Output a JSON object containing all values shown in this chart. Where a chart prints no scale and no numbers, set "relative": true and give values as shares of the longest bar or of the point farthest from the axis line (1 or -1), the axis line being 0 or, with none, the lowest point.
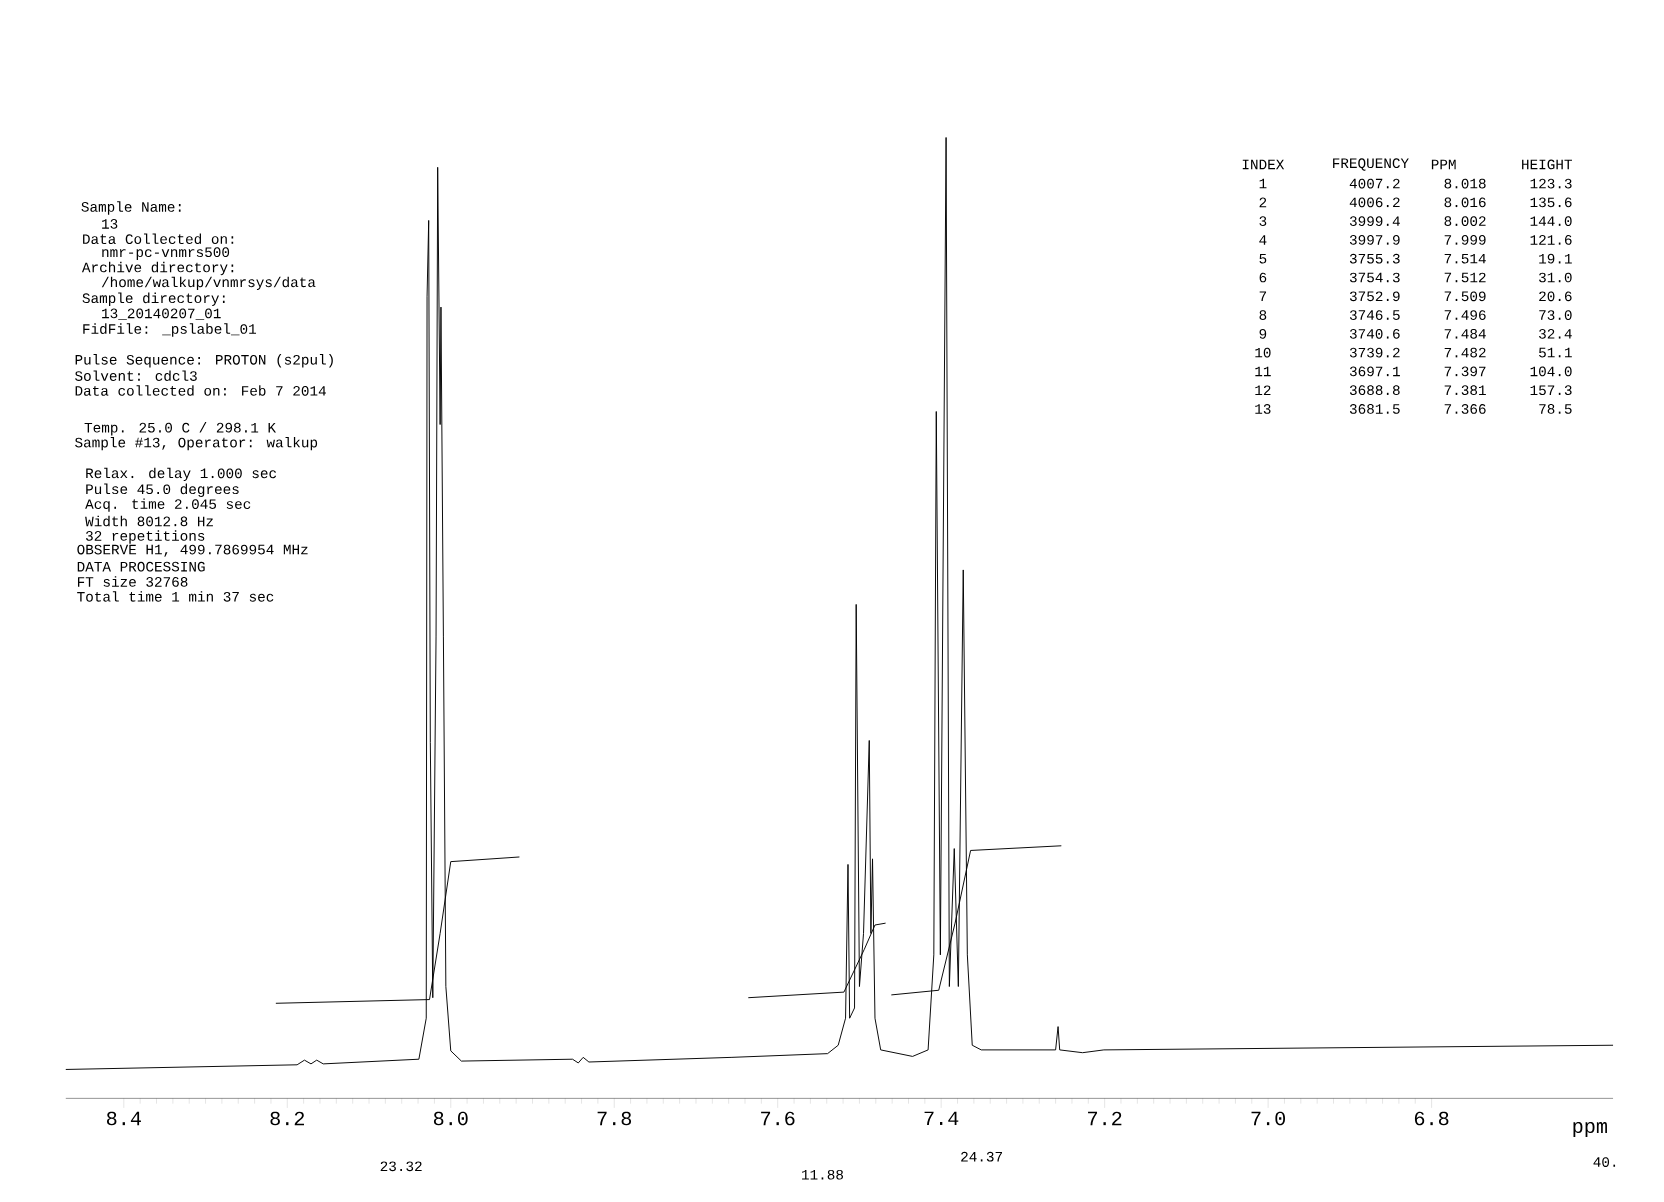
{
  "chart_data": {
    "type": "line",
    "relative": true,
    "xlabel": "ppm",
    "xlim": [
      8.471,
      6.578
    ],
    "xticks": [
      8.4,
      8.2,
      {
        "value": 8.0,
        "label": "8.0"
      },
      7.8,
      7.6,
      7.4,
      7.2,
      {
        "value": 7.0,
        "label": "7.0"
      },
      6.8
    ],
    "series": [
      {
        "color": "#000000",
        "x": [
          8.471,
          8.188,
          8.179,
          8.171,
          8.164,
          8.156,
          8.039,
          8.03,
          8.029,
          8.027,
          8.025,
          8.022,
          8.018,
          8.016,
          8.013,
          8.012,
          8.009,
          8.006,
          8.0,
          7.987,
          7.851,
          7.844,
          7.838,
          7.831,
          7.656,
          7.539,
          7.526,
          7.517,
          7.514,
          7.512,
          7.506,
          7.504,
          7.5,
          7.495,
          7.488,
          7.486,
          7.484,
          7.481,
          7.474,
          7.435,
          7.416,
          7.409,
          7.406,
          7.401,
          7.394,
          7.39,
          7.384,
          7.379,
          7.373,
          7.368,
          7.362,
          7.351,
          7.26,
          7.257,
          7.255,
          7.227,
          7.201,
          6.578
        ],
        "values": [
          0,
          0.005,
          0.01,
          0.006,
          0.01,
          0.006,
          0.011,
          0.055,
          0.829,
          0.911,
          0.351,
          0.077,
          0.465,
          0.968,
          0.692,
          0.818,
          0.465,
          0.089,
          0.02,
          0.009,
          0.011,
          0.007,
          0.013,
          0.008,
          0.013,
          0.017,
          0.026,
          0.055,
          0.22,
          0.055,
          0.066,
          0.499,
          0.089,
          0.146,
          0.353,
          0.146,
          0.226,
          0.055,
          0.021,
          0.014,
          0.021,
          0.123,
          0.706,
          0.123,
          1.0,
          0.089,
          0.237,
          0.089,
          0.536,
          0.123,
          0.026,
          0.021,
          0.021,
          0.046,
          0.021,
          0.018,
          0.021,
          0.026
        ]
      },
      {
        "color": "#000000",
        "x": [
          8.214,
          8.026,
          8.013,
          8.0,
          7.916
        ],
        "values": [
          0.071,
          0.075,
          0.146,
          0.223,
          0.228
        ]
      },
      {
        "color": "#000000",
        "x": [
          7.636,
          7.519,
          7.494,
          7.481,
          7.468
        ],
        "values": [
          0.077,
          0.083,
          0.129,
          0.155,
          0.157
        ]
      },
      {
        "color": "#000000",
        "x": [
          7.461,
          7.403,
          7.383,
          7.364,
          7.253
        ],
        "values": [
          0.08,
          0.085,
          0.157,
          0.235,
          0.24
        ]
      }
    ],
    "annotations": [
      "Sample Name:",
      "13",
      "Data Collected on:",
      "nmr-pc-vnmrs500",
      "Archive directory:",
      "/home/walkup/vnmrsys/data",
      "Sample directory:",
      "13_20140207_01",
      "FidFile: _pslabel_01",
      "Pulse Sequence: PROTON (s2pul)",
      "Solvent: cdcl3",
      "Data collected on: Feb  7 2014",
      "Temp. 25.0 C / 298.1 K",
      "Sample #13, Operator: walkup",
      "Relax. delay 1.000 sec",
      "Pulse 45.0 degrees",
      "Acq. time 2.045 sec",
      "Width 8012.8 Hz",
      "32 repetitions",
      "OBSERVE   H1, 499.7869954 MHz",
      "DATA PROCESSING",
      "FT size 32768",
      "Total time 1 min 37 sec",
      "INDEX",
      "FREQUENCY",
      "PPM",
      "HEIGHT",
      "1",
      "4007.2",
      "8.018",
      "123.3",
      "2",
      "4006.2",
      "8.016",
      "135.6",
      "3",
      "3999.4",
      "8.002",
      "144.0",
      "4",
      "3997.9",
      "7.999",
      "121.6",
      "5",
      "3755.3",
      "7.514",
      "19.1",
      "6",
      "3754.3",
      "7.512",
      "31.0",
      "7",
      "3752.9",
      "7.509",
      "20.6",
      "8",
      "3746.5",
      "7.496",
      "73.0",
      "9",
      "3740.6",
      "7.484",
      "32.4",
      "10",
      "3739.2",
      "7.482",
      "51.1",
      "11",
      "3697.1",
      "7.397",
      "104.0",
      "12",
      "3688.8",
      "7.381",
      "157.3",
      "13",
      "3681.5",
      "7.366",
      "78.5",
      "23.32",
      "11.88",
      "24.37",
      "40."
    ]
  }
}
